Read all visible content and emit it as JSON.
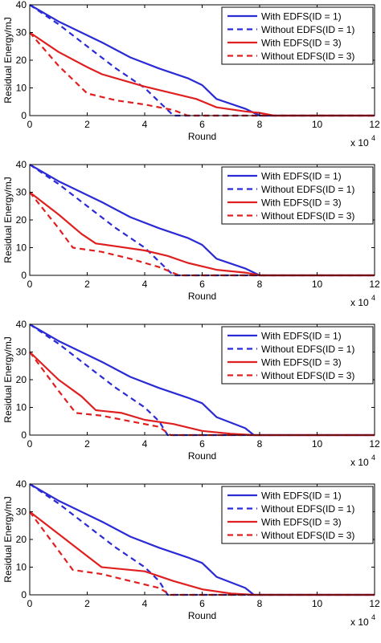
{
  "chart_data": [
    {
      "type": "line",
      "xlabel": "Round",
      "ylabel": "Residual Energy/mJ",
      "x_multiplier_base": "x 10",
      "x_multiplier_exp": "4",
      "xlim": [
        0,
        12
      ],
      "ylim": [
        0,
        40
      ],
      "xticks": [
        "0",
        "2",
        "4",
        "6",
        "8",
        "10",
        "12"
      ],
      "yticks": [
        "0",
        "10",
        "20",
        "30",
        "40"
      ],
      "grid": false,
      "legend_position": "top-right",
      "series": [
        {
          "name": "With EDFS(ID = 1)",
          "color": "#2b2bd6",
          "dash": "solid",
          "x": [
            0,
            1,
            2,
            2.5,
            3.5,
            4.5,
            5.5,
            6,
            6.5,
            7.5,
            8,
            12
          ],
          "y": [
            40,
            34,
            29,
            26.5,
            21,
            17,
            13.5,
            11,
            6,
            2.5,
            0,
            0
          ]
        },
        {
          "name": "Without EDFS(ID = 1)",
          "color": "#2b2bd6",
          "dash": "dashed",
          "x": [
            0,
            1,
            2,
            3,
            4,
            4.5,
            5,
            12
          ],
          "y": [
            40,
            33,
            25,
            17,
            10,
            5,
            0,
            0
          ]
        },
        {
          "name": "With EDFS(ID = 3)",
          "color": "#e02020",
          "dash": "solid",
          "x": [
            0,
            1,
            2,
            2.5,
            4,
            5,
            5.8,
            6.5,
            7.5,
            8,
            8.5,
            12
          ],
          "y": [
            30,
            23,
            17.5,
            15,
            10.5,
            8,
            6,
            3,
            1.5,
            1,
            0,
            0
          ]
        },
        {
          "name": "Without EDFS(ID = 3)",
          "color": "#e02020",
          "dash": "dashed",
          "x": [
            0,
            1,
            2,
            3,
            4,
            5,
            5.5,
            12
          ],
          "y": [
            30,
            18,
            8,
            5.5,
            4,
            2,
            0,
            0
          ]
        }
      ]
    },
    {
      "type": "line",
      "xlabel": "Round",
      "ylabel": "Residual Energy/mJ",
      "x_multiplier_base": "x 10",
      "x_multiplier_exp": "4",
      "xlim": [
        0,
        12
      ],
      "ylim": [
        0,
        40
      ],
      "xticks": [
        "0",
        "2",
        "4",
        "6",
        "8",
        "10",
        "12"
      ],
      "yticks": [
        "0",
        "10",
        "20",
        "30",
        "40"
      ],
      "grid": false,
      "legend_position": "top-right",
      "series": [
        {
          "name": "With EDFS(ID = 1)",
          "color": "#2b2bd6",
          "dash": "solid",
          "x": [
            0,
            1,
            2,
            2.5,
            3.5,
            4.5,
            5.5,
            6,
            6.5,
            7.5,
            8,
            12
          ],
          "y": [
            40,
            34,
            29,
            26.5,
            21,
            17,
            13.5,
            11,
            6,
            2.5,
            0,
            0
          ]
        },
        {
          "name": "Without EDFS(ID = 1)",
          "color": "#2b2bd6",
          "dash": "dashed",
          "x": [
            0,
            1,
            2,
            3,
            4,
            4.5,
            5,
            12
          ],
          "y": [
            40,
            33,
            25,
            17,
            10,
            5,
            0,
            0
          ]
        },
        {
          "name": "With EDFS(ID = 3)",
          "color": "#e02020",
          "dash": "solid",
          "x": [
            0,
            1,
            1.8,
            2.3,
            3,
            4,
            4.8,
            5.5,
            6.5,
            7.5,
            8,
            12
          ],
          "y": [
            30,
            22,
            15,
            11.5,
            10.5,
            9,
            7,
            4.5,
            2,
            1,
            0,
            0
          ]
        },
        {
          "name": "Without EDFS(ID = 3)",
          "color": "#e02020",
          "dash": "dashed",
          "x": [
            0,
            1,
            1.5,
            2.5,
            3.5,
            4.5,
            5.2,
            12
          ],
          "y": [
            30,
            17,
            10,
            8.5,
            6,
            3,
            0,
            0
          ]
        }
      ]
    },
    {
      "type": "line",
      "xlabel": "Round",
      "ylabel": "Residual Energy/mJ",
      "x_multiplier_base": "x 10",
      "x_multiplier_exp": "4",
      "xlim": [
        0,
        12
      ],
      "ylim": [
        0,
        40
      ],
      "xticks": [
        "0",
        "2",
        "4",
        "6",
        "8",
        "10",
        "12"
      ],
      "yticks": [
        "0",
        "10",
        "20",
        "30",
        "40"
      ],
      "grid": false,
      "legend_position": "top-right",
      "series": [
        {
          "name": "With EDFS(ID = 1)",
          "color": "#2b2bd6",
          "dash": "solid",
          "x": [
            0,
            1,
            2,
            2.5,
            3.5,
            4.5,
            5.5,
            6,
            6.5,
            7.5,
            7.8,
            12
          ],
          "y": [
            40,
            34,
            29,
            26.5,
            21,
            17,
            13.5,
            11.5,
            6.5,
            2.5,
            0,
            0
          ]
        },
        {
          "name": "Without EDFS(ID = 1)",
          "color": "#2b2bd6",
          "dash": "dashed",
          "x": [
            0,
            1,
            2,
            3,
            4,
            4.5,
            4.8,
            12
          ],
          "y": [
            40,
            33,
            25,
            17,
            10,
            5,
            0,
            0
          ]
        },
        {
          "name": "With EDFS(ID = 3)",
          "color": "#e02020",
          "dash": "solid",
          "x": [
            0,
            1,
            1.8,
            2.3,
            3.2,
            4,
            5,
            6,
            7,
            7.8,
            12
          ],
          "y": [
            30,
            20,
            14,
            9,
            8,
            5.5,
            4,
            1.5,
            0.5,
            0,
            0
          ]
        },
        {
          "name": "Without EDFS(ID = 3)",
          "color": "#e02020",
          "dash": "dashed",
          "x": [
            0,
            1,
            1.6,
            2.5,
            3.5,
            4.5,
            4.9,
            12
          ],
          "y": [
            30,
            16,
            8,
            7,
            5,
            3,
            0,
            0
          ]
        }
      ]
    },
    {
      "type": "line",
      "xlabel": "Round",
      "ylabel": "Residual Energy/mJ",
      "x_multiplier_base": "x 10",
      "x_multiplier_exp": "4",
      "xlim": [
        0,
        12
      ],
      "ylim": [
        0,
        40
      ],
      "xticks": [
        "0",
        "2",
        "4",
        "6",
        "8",
        "10",
        "12"
      ],
      "yticks": [
        "0",
        "10",
        "20",
        "30",
        "40"
      ],
      "grid": false,
      "legend_position": "top-right",
      "series": [
        {
          "name": "With EDFS(ID = 1)",
          "color": "#2b2bd6",
          "dash": "solid",
          "x": [
            0,
            1,
            2,
            2.5,
            3.5,
            4.5,
            5.5,
            6,
            6.5,
            7.5,
            7.8,
            12
          ],
          "y": [
            40,
            34,
            29,
            26.5,
            21,
            17,
            13.5,
            11.5,
            6.5,
            2.5,
            0,
            0
          ]
        },
        {
          "name": "Without EDFS(ID = 1)",
          "color": "#2b2bd6",
          "dash": "dashed",
          "x": [
            0,
            1,
            2,
            3,
            4,
            4.5,
            4.8,
            12
          ],
          "y": [
            40,
            33,
            25,
            17,
            10,
            5,
            0,
            0
          ]
        },
        {
          "name": "With EDFS(ID = 3)",
          "color": "#e02020",
          "dash": "solid",
          "x": [
            0,
            1,
            2,
            2.5,
            4,
            5,
            6,
            7,
            7.8,
            12
          ],
          "y": [
            30,
            22,
            14,
            10,
            8.5,
            5,
            2,
            0.5,
            0,
            0
          ]
        },
        {
          "name": "Without EDFS(ID = 3)",
          "color": "#e02020",
          "dash": "dashed",
          "x": [
            0,
            1,
            1.5,
            2.5,
            3.5,
            4.5,
            4.9,
            12
          ],
          "y": [
            30,
            16,
            9,
            7.5,
            5,
            2.5,
            0,
            0
          ]
        }
      ]
    }
  ]
}
